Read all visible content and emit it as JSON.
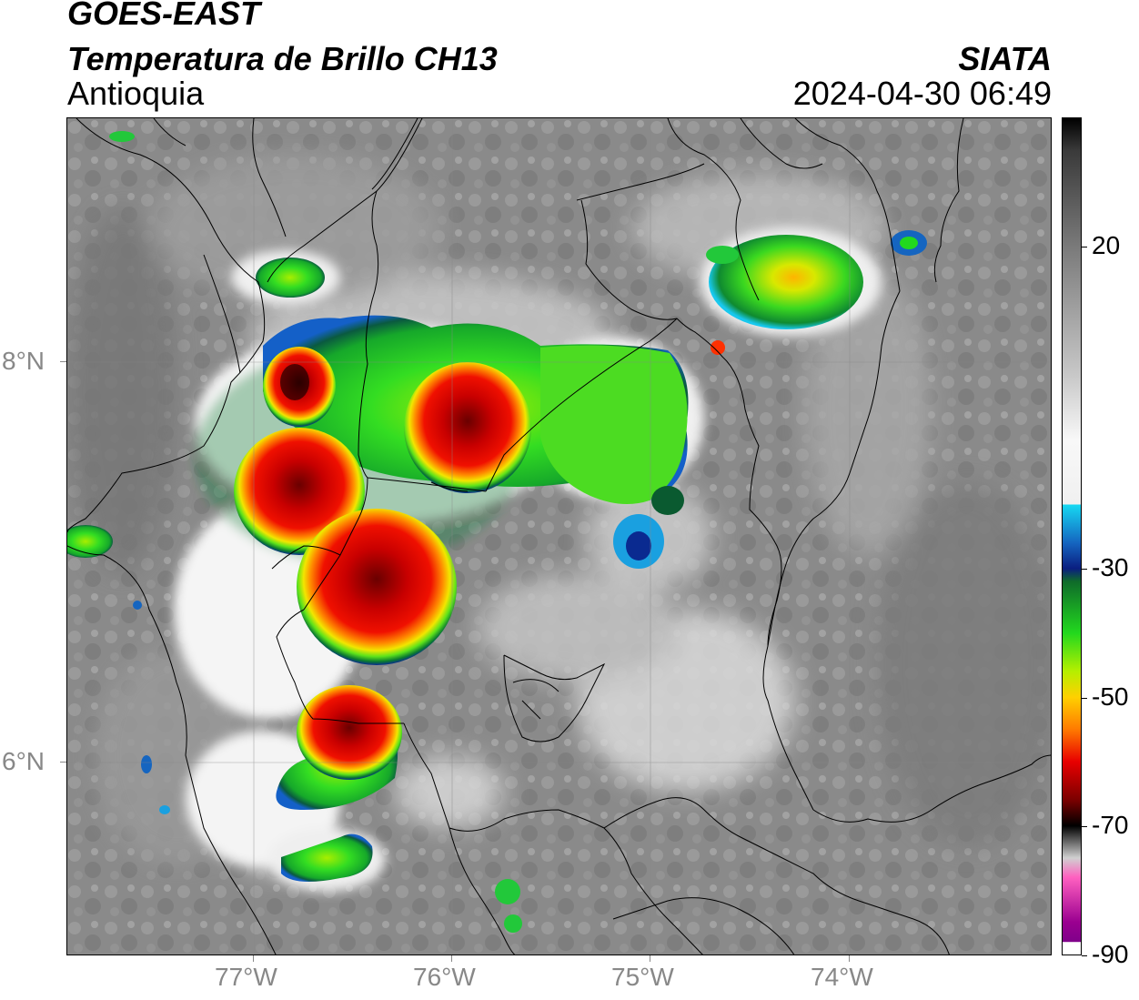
{
  "header": {
    "satellite": "GOES-EAST",
    "product": "Temperatura de Brillo CH13",
    "region": "Antioquia",
    "organization": "SIATA",
    "datetime": "2024-04-30 06:49"
  },
  "axes": {
    "x_labels": [
      "77°W",
      "76°W",
      "75°W",
      "74°W"
    ],
    "y_labels": [
      "8°N",
      "6°N"
    ],
    "grid": true
  },
  "colorbar": {
    "tick_labels": [
      "20",
      "-30",
      "-50",
      "-70",
      "-90"
    ],
    "range": [
      -90,
      40
    ],
    "stops": [
      {
        "value": 40,
        "color": "#000000"
      },
      {
        "value": 35,
        "color": "#3a3a3a"
      },
      {
        "value": 20,
        "color": "#7a7a7a"
      },
      {
        "value": 0,
        "color": "#c8c8c8"
      },
      {
        "value": -10,
        "color": "#f8f8f8"
      },
      {
        "value": -20,
        "color": "#f0f0f0"
      },
      {
        "value": -20.1,
        "color": "#16d8f2"
      },
      {
        "value": -26,
        "color": "#1565c0"
      },
      {
        "value": -30,
        "color": "#0a1e80"
      },
      {
        "value": -32,
        "color": "#0f6b2a"
      },
      {
        "value": -40,
        "color": "#22d81e"
      },
      {
        "value": -46,
        "color": "#b6ef00"
      },
      {
        "value": -50,
        "color": "#ffd000"
      },
      {
        "value": -55,
        "color": "#ff7a00"
      },
      {
        "value": -60,
        "color": "#e80000"
      },
      {
        "value": -66,
        "color": "#7a0000"
      },
      {
        "value": -70,
        "color": "#000000"
      },
      {
        "value": -75,
        "color": "#d0d0d0"
      },
      {
        "value": -78,
        "color": "#ff60c0"
      },
      {
        "value": -85,
        "color": "#9a0090"
      },
      {
        "value": -88,
        "color": "#80008a"
      },
      {
        "value": -88.1,
        "color": "#ffffff"
      },
      {
        "value": -90,
        "color": "#ffffff"
      }
    ]
  }
}
